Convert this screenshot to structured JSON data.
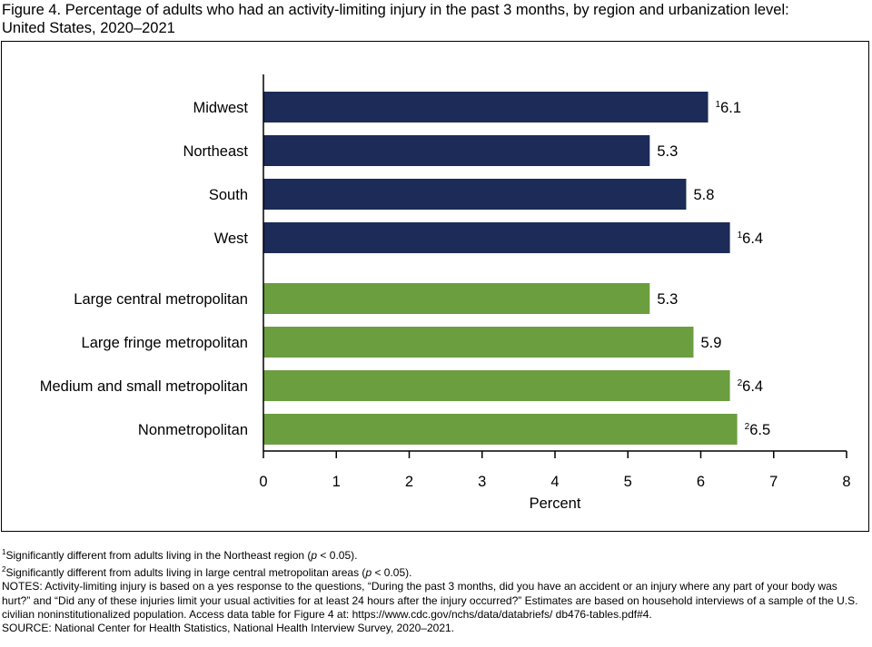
{
  "title_line1": "Figure 4. Percentage of adults who had an activity-limiting injury in the past 3 months, by region and urbanization level:",
  "title_line2": "United States, 2020–2021",
  "chart_data": {
    "type": "bar",
    "orientation": "horizontal",
    "title": "Figure 4. Percentage of adults who had an activity-limiting injury in the past 3 months, by region and urbanization level: United States, 2020–2021",
    "xlabel": "Percent",
    "ylabel": "",
    "xlim": [
      0,
      8
    ],
    "xticks": [
      "0",
      "1",
      "2",
      "3",
      "4",
      "5",
      "6",
      "7",
      "8"
    ],
    "grid": false,
    "groups": [
      {
        "name": "Region",
        "color": "#1c2b57",
        "categories": [
          "Midwest",
          "Northeast",
          "South",
          "West"
        ],
        "values": [
          6.1,
          5.3,
          5.8,
          6.4
        ],
        "footnotes": [
          "1",
          "",
          "",
          "1"
        ]
      },
      {
        "name": "Urbanization level",
        "color": "#6b9e3f",
        "categories": [
          "Large central metropolitan",
          "Large fringe metropolitan",
          "Medium and small metropolitan",
          "Nonmetropolitan"
        ],
        "values": [
          5.3,
          5.9,
          6.4,
          6.5
        ],
        "footnotes": [
          "",
          "",
          "2",
          "2"
        ]
      }
    ]
  },
  "notes": {
    "fn1_mark": "1",
    "fn1": "Significantly different from adults living in the Northeast region (",
    "fn2_mark": "2",
    "fn2": "Significantly different from adults living in large central metropolitan areas (",
    "p": "p",
    "p_val": " < 0.05).",
    "notes": "NOTES: Activity-limiting injury is based on a yes response to the questions, “During the past 3 months, did you have an accident or an injury where any part of your body was hurt?” and “Did any of these injuries limit your usual activities for at least 24 hours after the injury occurred?” Estimates are based on household interviews of a sample of the U.S. civilian noninstitutionalized population. Access data table for Figure 4 at: https://www.cdc.gov/nchs/data/databriefs/ db476-tables.pdf#4.",
    "source": "SOURCE: National Center for Health Statistics, National Health Interview Survey, 2020–2021."
  }
}
